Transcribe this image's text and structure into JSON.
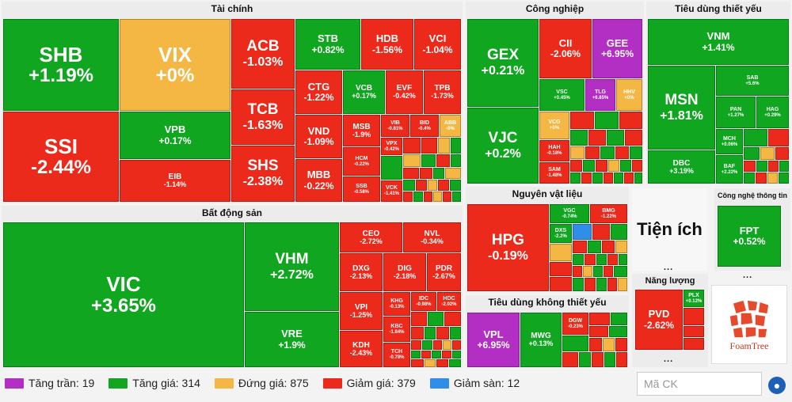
{
  "sectors": {
    "tai_chinh": "Tài chính",
    "cong_nghiep": "Công nghiệp",
    "tieu_dung_thiet_yeu": "Tiêu dùng thiết yếu",
    "bat_dong_san": "Bất động sản",
    "nguyen_vat_lieu": "Nguyên vật liệu",
    "tien_ich": "Tiện ích",
    "cong_nghe": "Công nghệ thông tin",
    "nang_luong": "Năng lượng",
    "tieu_dung_khong_thiet_yeu": "Tiêu dùng không thiết yếu"
  },
  "tiles": {
    "SHB": {
      "t": "SHB",
      "v": "+1.19%"
    },
    "SSI": {
      "t": "SSI",
      "v": "-2.44%"
    },
    "VIX": {
      "t": "VIX",
      "v": "+0%"
    },
    "VPB": {
      "t": "VPB",
      "v": "+0.17%"
    },
    "EIB": {
      "t": "EIB",
      "v": "-1.14%"
    },
    "ACB": {
      "t": "ACB",
      "v": "-1.03%"
    },
    "TCB": {
      "t": "TCB",
      "v": "-1.63%"
    },
    "SHS": {
      "t": "SHS",
      "v": "-2.38%"
    },
    "STB": {
      "t": "STB",
      "v": "+0.82%"
    },
    "HDB": {
      "t": "HDB",
      "v": "-1.56%"
    },
    "VCI": {
      "t": "VCI",
      "v": "-1.04%"
    },
    "CTG": {
      "t": "CTG",
      "v": "-1.22%"
    },
    "VCB": {
      "t": "VCB",
      "v": "+0.17%"
    },
    "EVF": {
      "t": "EVF",
      "v": "-0.42%"
    },
    "TPB": {
      "t": "TPB",
      "v": "-1.73%"
    },
    "VND": {
      "t": "VND",
      "v": "-1.09%"
    },
    "MSB": {
      "t": "MSB",
      "v": "-1.9%"
    },
    "VIB": {
      "t": "VIB",
      "v": "-0.81%"
    },
    "BID": {
      "t": "BID",
      "v": "-0.4%"
    },
    "ABB": {
      "t": "ABB",
      "v": "-0%"
    },
    "MBB": {
      "t": "MBB",
      "v": "-0.22%"
    },
    "HCM": {
      "t": "HCM",
      "v": "-0.22%"
    },
    "SSB": {
      "t": "SSB",
      "v": "-0.58%"
    },
    "VPX": {
      "t": "VPX",
      "v": "-0.42%"
    },
    "VCK": {
      "t": "VCK",
      "v": "-1.41%"
    },
    "GEX": {
      "t": "GEX",
      "v": "+0.21%"
    },
    "VJC": {
      "t": "VJC",
      "v": "+0.2%"
    },
    "CII": {
      "t": "CII",
      "v": "-2.06%"
    },
    "GEE": {
      "t": "GEE",
      "v": "+6.95%"
    },
    "VSC": {
      "t": "VSC",
      "v": "+0.45%"
    },
    "TLG": {
      "t": "TLG",
      "v": "+6.85%"
    },
    "HHV": {
      "t": "HHV",
      "v": "+0%"
    },
    "VCG": {
      "t": "VCG",
      "v": "+0%"
    },
    "HAH": {
      "t": "HAH",
      "v": "-0.18%"
    },
    "SAM": {
      "t": "SAM",
      "v": "-1.48%"
    },
    "VNM": {
      "t": "VNM",
      "v": "+1.41%"
    },
    "MSN": {
      "t": "MSN",
      "v": "+1.81%"
    },
    "SAB": {
      "t": "SAB",
      "v": "+5.6%"
    },
    "PAN": {
      "t": "PAN",
      "v": "+1.27%"
    },
    "HAG": {
      "t": "HAG",
      "v": "+0.29%"
    },
    "MCH": {
      "t": "MCH",
      "v": "+0.06%"
    },
    "DBC": {
      "t": "DBC",
      "v": "+3.19%"
    },
    "BAF": {
      "t": "BAF",
      "v": "+2.22%"
    },
    "VIC": {
      "t": "VIC",
      "v": "+3.65%"
    },
    "VHM": {
      "t": "VHM",
      "v": "+2.72%"
    },
    "VRE": {
      "t": "VRE",
      "v": "+1.9%"
    },
    "CEO": {
      "t": "CEO",
      "v": "-2.72%"
    },
    "NVL": {
      "t": "NVL",
      "v": "-0.34%"
    },
    "DXG": {
      "t": "DXG",
      "v": "-2.13%"
    },
    "DIG": {
      "t": "DIG",
      "v": "-2.18%"
    },
    "PDR": {
      "t": "PDR",
      "v": "-2.67%"
    },
    "VPI": {
      "t": "VPI",
      "v": "-1.25%"
    },
    "KHG": {
      "t": "KHG",
      "v": "-0.13%"
    },
    "IDC": {
      "t": "IDC",
      "v": "-0.98%"
    },
    "HDC": {
      "t": "HDC",
      "v": "-2.02%"
    },
    "KBC": {
      "t": "KBC",
      "v": "-1.84%"
    },
    "KDH": {
      "t": "KDH",
      "v": "-2.43%"
    },
    "TCH": {
      "t": "TCH",
      "v": "-0.78%"
    },
    "HPG": {
      "t": "HPG",
      "v": "-0.19%"
    },
    "VGC": {
      "t": "VGC",
      "v": "-0.74%"
    },
    "BMG": {
      "t": "BMG",
      "v": "-1.22%"
    },
    "DXS": {
      "t": "DXS",
      "v": "-2.2%"
    },
    "FPT": {
      "t": "FPT",
      "v": "+0.52%"
    },
    "PVD": {
      "t": "PVD",
      "v": "-2.62%"
    },
    "PLX": {
      "t": "PLX",
      "v": "+0.12%"
    },
    "VPL": {
      "t": "VPL",
      "v": "+6.95%"
    },
    "MWG": {
      "t": "MWG",
      "v": "+0.13%"
    },
    "DGW": {
      "t": "DGW",
      "v": "-0.23%"
    }
  },
  "tien_ich_label": "Tiện ích",
  "more": "...",
  "legend": {
    "tran": "Tăng trần: 19",
    "tang": "Tăng giá: 314",
    "dung": "Đứng giá: 875",
    "giam": "Giảm giá: 379",
    "san": "Giảm sàn: 12"
  },
  "colors": {
    "ceiling": "#b32fc4",
    "up": "#10a61f",
    "flat": "#f5b744",
    "down": "#ec2a1c",
    "floor": "#2f8fe8"
  },
  "search": {
    "placeholder": "Mã CK"
  },
  "foamtree": "FoamTree",
  "icons": {
    "globe": "globe-icon"
  }
}
